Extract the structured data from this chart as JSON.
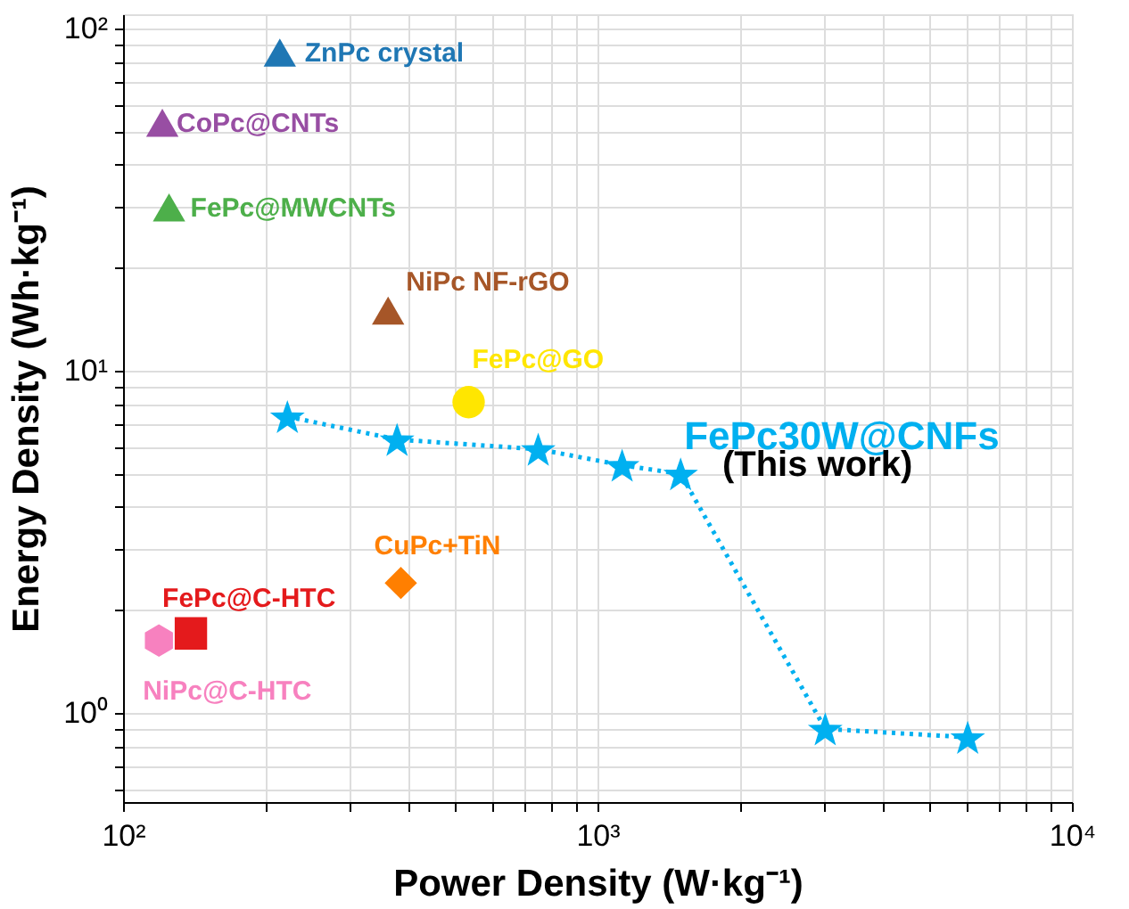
{
  "chart_data": {
    "type": "scatter",
    "xlabel": "Power Density (W·kg⁻¹)",
    "ylabel": "Energy Density (Wh·kg⁻¹)",
    "log": "xy",
    "grid": true,
    "xlim": [
      100,
      10000
    ],
    "ylim": [
      0.55,
      110
    ],
    "xticks": [
      {
        "value": 100,
        "label": "10²"
      },
      {
        "value": 200,
        "label": null
      },
      {
        "value": 300,
        "label": null
      },
      {
        "value": 400,
        "label": null
      },
      {
        "value": 500,
        "label": null
      },
      {
        "value": 600,
        "label": null
      },
      {
        "value": 700,
        "label": null
      },
      {
        "value": 800,
        "label": null
      },
      {
        "value": 900,
        "label": null
      },
      {
        "value": 1000,
        "label": "10³"
      },
      {
        "value": 2000,
        "label": null
      },
      {
        "value": 3000,
        "label": null
      },
      {
        "value": 4000,
        "label": null
      },
      {
        "value": 5000,
        "label": null
      },
      {
        "value": 6000,
        "label": null
      },
      {
        "value": 7000,
        "label": null
      },
      {
        "value": 8000,
        "label": null
      },
      {
        "value": 9000,
        "label": null
      },
      {
        "value": 10000,
        "label": "10⁴"
      }
    ],
    "yticks": [
      {
        "value": 0.6,
        "label": null
      },
      {
        "value": 0.7,
        "label": null
      },
      {
        "value": 0.8,
        "label": null
      },
      {
        "value": 0.9,
        "label": null
      },
      {
        "value": 1,
        "label": "10⁰"
      },
      {
        "value": 2,
        "label": null
      },
      {
        "value": 3,
        "label": null
      },
      {
        "value": 4,
        "label": null
      },
      {
        "value": 5,
        "label": null
      },
      {
        "value": 6,
        "label": null
      },
      {
        "value": 7,
        "label": null
      },
      {
        "value": 8,
        "label": null
      },
      {
        "value": 9,
        "label": null
      },
      {
        "value": 10,
        "label": "10¹"
      },
      {
        "value": 20,
        "label": null
      },
      {
        "value": 30,
        "label": null
      },
      {
        "value": 40,
        "label": null
      },
      {
        "value": 50,
        "label": null
      },
      {
        "value": 60,
        "label": null
      },
      {
        "value": 70,
        "label": null
      },
      {
        "value": 80,
        "label": null
      },
      {
        "value": 90,
        "label": null
      },
      {
        "value": 100,
        "label": "10²"
      }
    ],
    "series": [
      {
        "name": "ZnPc crystal",
        "color": "#1f77b4",
        "marker": "triangle",
        "x": [
          214
        ],
        "values": [
          85
        ]
      },
      {
        "name": "CoPc@CNTs",
        "color": "#984ea3",
        "marker": "triangle",
        "x": [
          121
        ],
        "values": [
          53
        ]
      },
      {
        "name": "FePc@MWCNTs",
        "color": "#4daf4a",
        "marker": "triangle",
        "x": [
          125
        ],
        "values": [
          30
        ]
      },
      {
        "name": "NiPc NF-rGO",
        "color": "#a65628",
        "marker": "triangle",
        "x": [
          362
        ],
        "values": [
          15
        ]
      },
      {
        "name": "FePc@GO",
        "color": "#ffe600",
        "marker": "circle",
        "x": [
          535
        ],
        "values": [
          8.1
        ]
      },
      {
        "name": "FePc30W@CNFs",
        "color": "#00b0f0",
        "type": "line",
        "marker": "star",
        "line_style": "dotted",
        "x": [
          222,
          378,
          750,
          1127,
          1497,
          3020,
          6030
        ],
        "values": [
          7.35,
          6.3,
          5.9,
          5.3,
          5.0,
          0.9,
          0.85
        ]
      },
      {
        "name": "CuPc+TiN",
        "color": "#ff7f00",
        "marker": "diamond",
        "x": [
          385
        ],
        "values": [
          2.4
        ]
      },
      {
        "name": "FePc@C-HTC",
        "color": "#e41a1c",
        "marker": "square",
        "x": [
          139
        ],
        "values": [
          1.71
        ]
      },
      {
        "name": "NiPc@C-HTC",
        "color": "#f781bf",
        "x": [
          119
        ],
        "values": [
          1.63
        ]
      }
    ],
    "annotations": [
      "(This work)"
    ]
  }
}
